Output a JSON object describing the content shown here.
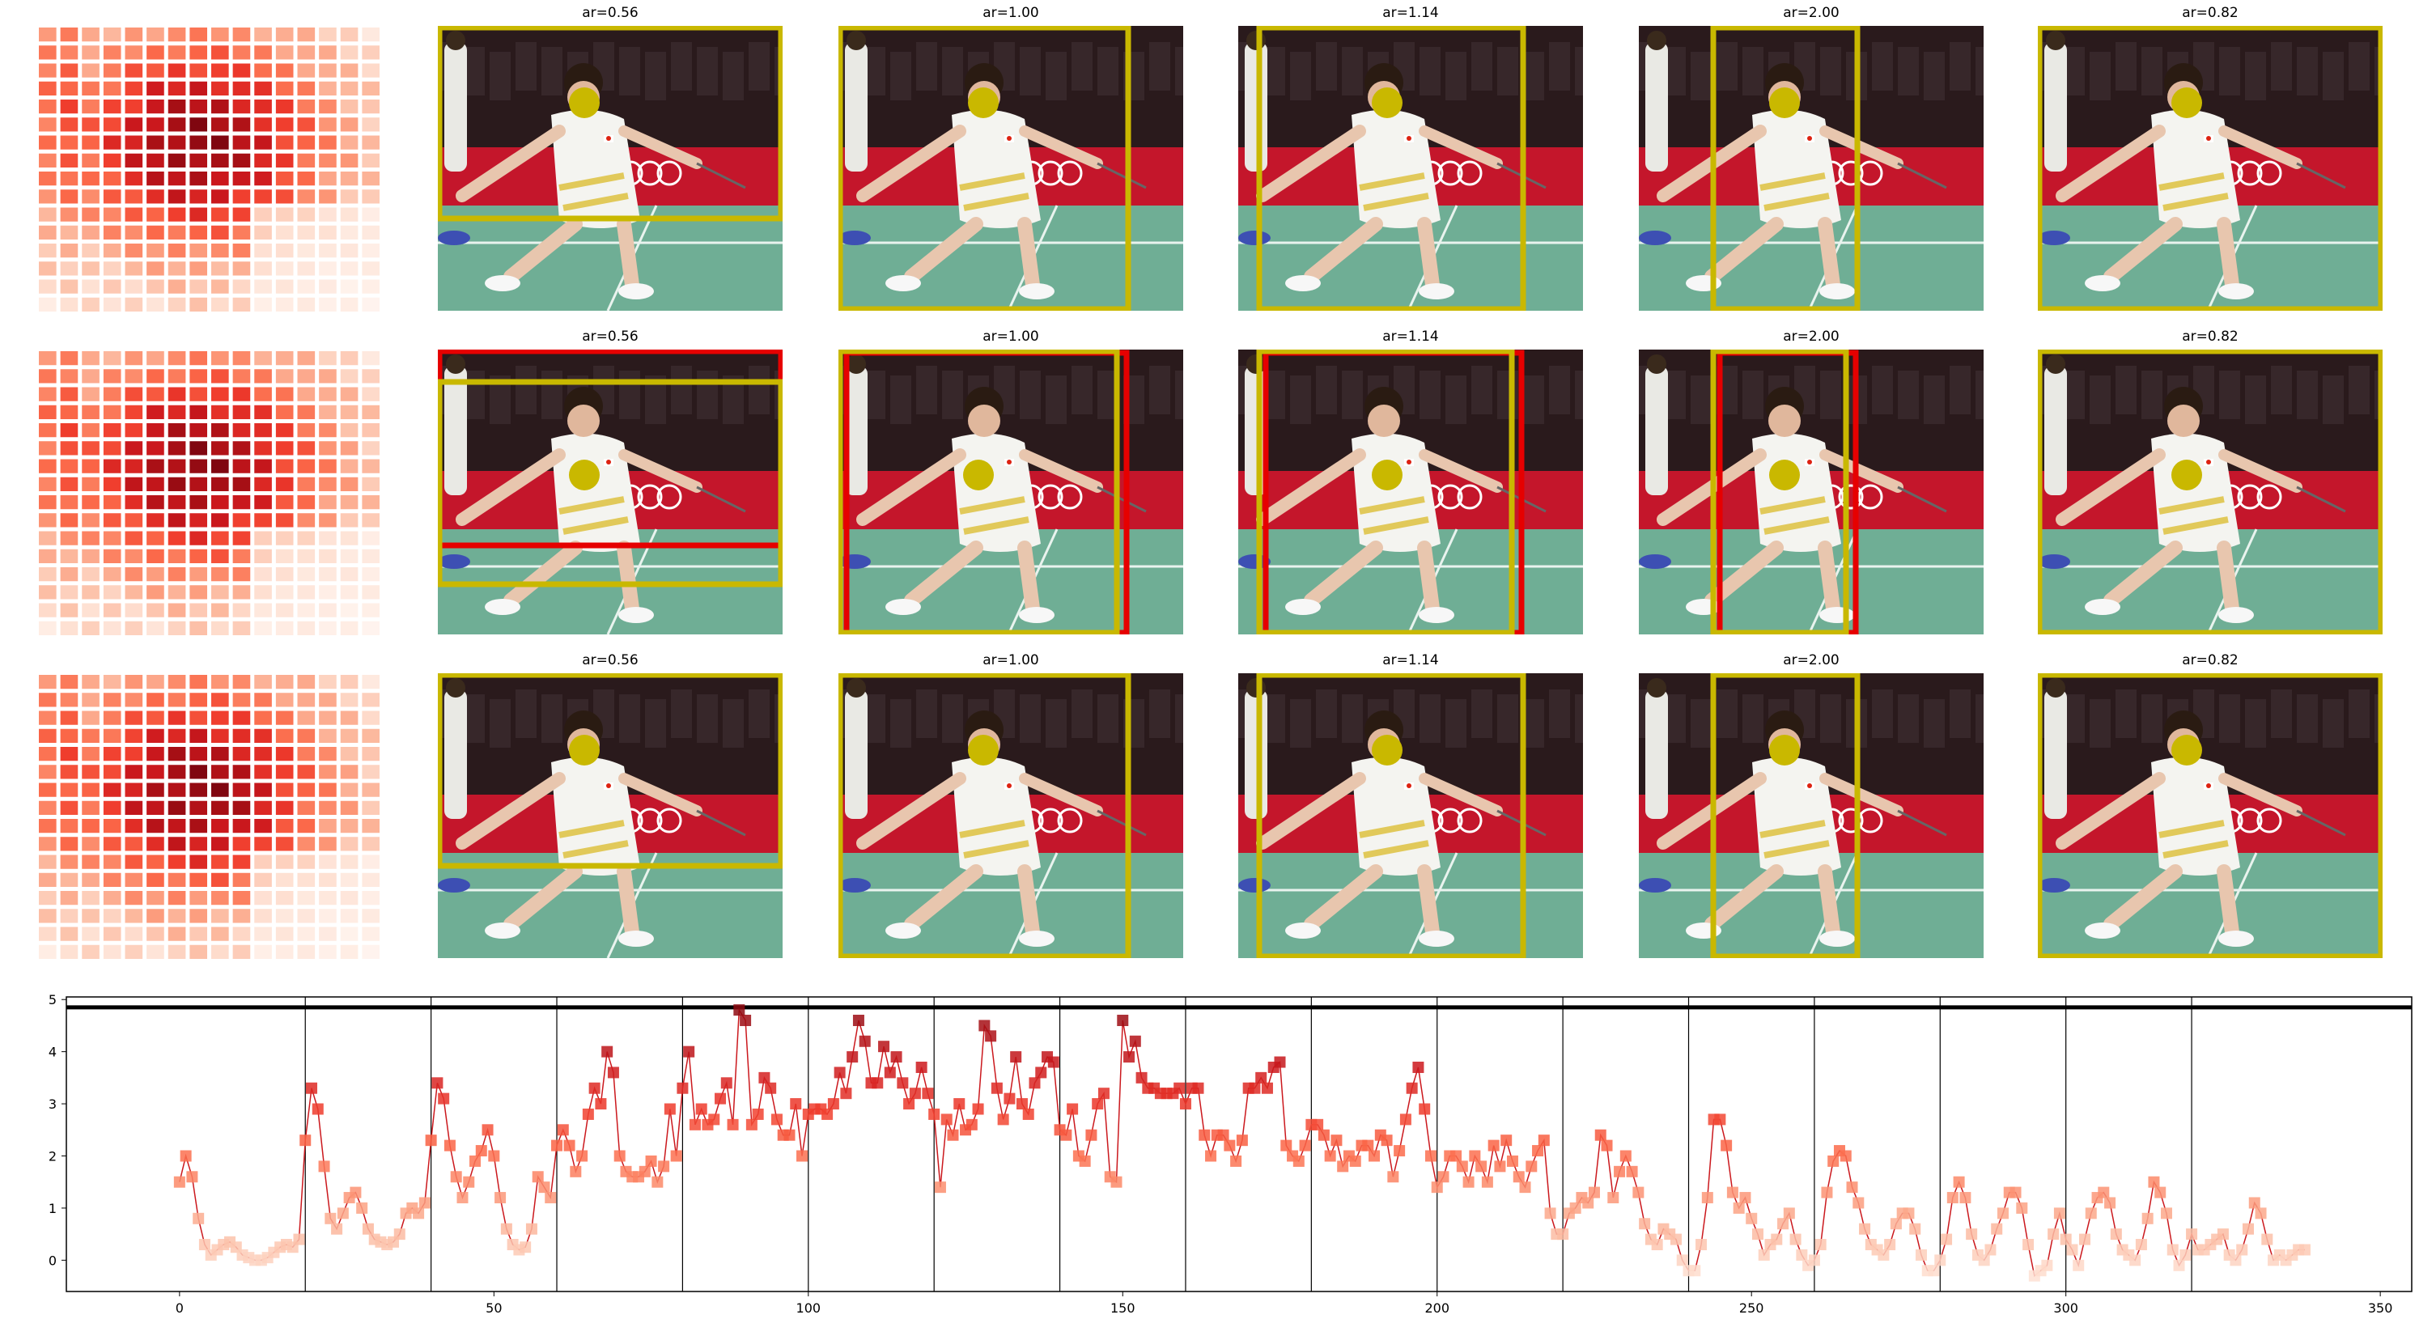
{
  "panels": {
    "titles": [
      "ar=0.56",
      "ar=1.00",
      "ar=1.14",
      "ar=2.00",
      "ar=0.82"
    ],
    "rows": 3,
    "scene": "badminton player lunging on court",
    "colors": {
      "crop_box": "#c9b800",
      "alt_box": "#e60000",
      "marker": "#c9b800",
      "banner_red": "#c4162b",
      "court_green": "#6fae95",
      "stands_dark": "#2a1a1c"
    }
  },
  "heatmap": {
    "grid": 16,
    "colormap": "Reds"
  },
  "chart_data": {
    "type": "line",
    "title": "",
    "xlabel": "",
    "ylabel": "",
    "xlim": [
      -18,
      355
    ],
    "ylim": [
      -0.6,
      5.05
    ],
    "xticks": [
      0,
      50,
      100,
      150,
      200,
      250,
      300,
      350
    ],
    "yticks": [
      0,
      1,
      2,
      3,
      4,
      5
    ],
    "vlines": [
      20,
      40,
      60,
      80,
      100,
      120,
      140,
      160,
      180,
      200,
      220,
      240,
      260,
      280,
      300,
      320
    ],
    "hline": 4.85,
    "marker": "square",
    "line_color": "#cb181d",
    "colormap": "Reds",
    "series": [
      {
        "name": "",
        "x": [
          0,
          1,
          2,
          3,
          4,
          5,
          6,
          7,
          8,
          9,
          10,
          11,
          12,
          13,
          14,
          15,
          16,
          17,
          18,
          19,
          20,
          21,
          22,
          23,
          24,
          25,
          26,
          27,
          28,
          29,
          30,
          31,
          32,
          33,
          34,
          35,
          36,
          37,
          38,
          39,
          40,
          41,
          42,
          43,
          44,
          45,
          46,
          47,
          48,
          49,
          50,
          51,
          52,
          53,
          54,
          55,
          56,
          57,
          58,
          59,
          60,
          61,
          62,
          63,
          64,
          65,
          66,
          67,
          68,
          69,
          70,
          71,
          72,
          73,
          74,
          75,
          76,
          77,
          78,
          79,
          80,
          81,
          82,
          83,
          84,
          85,
          86,
          87,
          88,
          89,
          90,
          91,
          92,
          93,
          94,
          95,
          96,
          97,
          98,
          99,
          100,
          101,
          102,
          103,
          104,
          105,
          106,
          107,
          108,
          109,
          110,
          111,
          112,
          113,
          114,
          115,
          116,
          117,
          118,
          119,
          120,
          121,
          122,
          123,
          124,
          125,
          126,
          127,
          128,
          129,
          130,
          131,
          132,
          133,
          134,
          135,
          136,
          137,
          138,
          139,
          140,
          141,
          142,
          143,
          144,
          145,
          146,
          147,
          148,
          149,
          150,
          151,
          152,
          153,
          154,
          155,
          156,
          157,
          158,
          159,
          160,
          161,
          162,
          163,
          164,
          165,
          166,
          167,
          168,
          169,
          170,
          171,
          172,
          173,
          174,
          175,
          176,
          177,
          178,
          179,
          180,
          181,
          182,
          183,
          184,
          185,
          186,
          187,
          188,
          189,
          190,
          191,
          192,
          193,
          194,
          195,
          196,
          197,
          198,
          199,
          200,
          201,
          202,
          203,
          204,
          205,
          206,
          207,
          208,
          209,
          210,
          211,
          212,
          213,
          214,
          215,
          216,
          217,
          218,
          219,
          220,
          221,
          222,
          223,
          224,
          225,
          226,
          227,
          228,
          229,
          230,
          231,
          232,
          233,
          234,
          235,
          236,
          237,
          238,
          239,
          240,
          241,
          242,
          243,
          244,
          245,
          246,
          247,
          248,
          249,
          250,
          251,
          252,
          253,
          254,
          255,
          256,
          257,
          258,
          259,
          260,
          261,
          262,
          263,
          264,
          265,
          266,
          267,
          268,
          269,
          270,
          271,
          272,
          273,
          274,
          275,
          276,
          277,
          278,
          279,
          280,
          281,
          282,
          283,
          284,
          285,
          286,
          287,
          288,
          289,
          290,
          291,
          292,
          293,
          294,
          295,
          296,
          297,
          298,
          299,
          300,
          301,
          302,
          303,
          304,
          305,
          306,
          307,
          308,
          309,
          310,
          311,
          312,
          313,
          314,
          315,
          316,
          317,
          318,
          319,
          320,
          321,
          322,
          323,
          324,
          325,
          326,
          327,
          328,
          329,
          330,
          331,
          332,
          333,
          334,
          335,
          336,
          337,
          338
        ],
        "y": [
          1.5,
          2.0,
          1.6,
          0.8,
          0.3,
          0.1,
          0.2,
          0.3,
          0.35,
          0.25,
          0.1,
          0.05,
          0.0,
          0.0,
          0.05,
          0.15,
          0.25,
          0.3,
          0.25,
          0.4,
          2.3,
          3.3,
          2.9,
          1.8,
          0.8,
          0.6,
          0.9,
          1.2,
          1.3,
          1.0,
          0.6,
          0.4,
          0.35,
          0.3,
          0.35,
          0.5,
          0.9,
          1.0,
          0.9,
          1.1,
          2.3,
          3.4,
          3.1,
          2.2,
          1.6,
          1.2,
          1.5,
          1.9,
          2.1,
          2.5,
          2.0,
          1.2,
          0.6,
          0.3,
          0.2,
          0.25,
          0.6,
          1.6,
          1.4,
          1.2,
          2.2,
          2.5,
          2.2,
          1.7,
          2.0,
          2.8,
          3.3,
          3.0,
          4.0,
          3.6,
          2.0,
          1.7,
          1.6,
          1.6,
          1.7,
          1.9,
          1.5,
          1.8,
          2.9,
          2.0,
          3.3,
          4.0,
          2.6,
          2.9,
          2.6,
          2.7,
          3.1,
          3.4,
          2.6,
          4.8,
          4.6,
          2.6,
          2.8,
          3.5,
          3.3,
          2.7,
          2.4,
          2.4,
          3.0,
          2.0,
          2.8,
          2.9,
          2.9,
          2.8,
          3.0,
          3.6,
          3.2,
          3.9,
          4.6,
          4.2,
          3.4,
          3.4,
          4.1,
          3.6,
          3.9,
          3.4,
          3.0,
          3.2,
          3.7,
          3.2,
          2.8,
          1.4,
          2.7,
          2.4,
          3.0,
          2.5,
          2.6,
          2.9,
          4.5,
          4.3,
          3.3,
          2.7,
          3.1,
          3.9,
          3.0,
          2.8,
          3.4,
          3.6,
          3.9,
          3.8,
          2.5,
          2.4,
          2.9,
          2.0,
          1.9,
          2.4,
          3.0,
          3.2,
          1.6,
          1.5,
          4.6,
          3.9,
          4.2,
          3.5,
          3.3,
          3.3,
          3.2,
          3.2,
          3.2,
          3.3,
          3.0,
          3.3,
          3.3,
          2.4,
          2.0,
          2.4,
          2.4,
          2.2,
          1.9,
          2.3,
          3.3,
          3.3,
          3.5,
          3.3,
          3.7,
          3.8,
          2.2,
          2.0,
          1.9,
          2.2,
          2.6,
          2.6,
          2.4,
          2.0,
          2.3,
          1.8,
          2.0,
          1.9,
          2.2,
          2.2,
          2.0,
          2.4,
          2.3,
          1.6,
          2.1,
          2.7,
          3.3,
          3.7,
          2.9,
          2.0,
          1.4,
          1.6,
          2.0,
          2.0,
          1.8,
          1.5,
          2.0,
          1.8,
          1.5,
          2.2,
          1.8,
          2.3,
          1.9,
          1.6,
          1.4,
          1.8,
          2.1,
          2.3,
          0.9,
          0.5,
          0.5,
          0.9,
          1.0,
          1.2,
          1.1,
          1.3,
          2.4,
          2.2,
          1.2,
          1.7,
          2.0,
          1.7,
          1.3,
          0.7,
          0.4,
          0.3,
          0.6,
          0.5,
          0.4,
          0.0,
          -0.2,
          -0.2,
          0.3,
          1.2,
          2.7,
          2.7,
          2.2,
          1.3,
          1.0,
          1.2,
          0.8,
          0.5,
          0.1,
          0.3,
          0.4,
          0.7,
          0.9,
          0.4,
          0.1,
          -0.1,
          0.0,
          0.3,
          1.3,
          1.9,
          2.1,
          2.0,
          1.4,
          1.1,
          0.6,
          0.3,
          0.2,
          0.1,
          0.3,
          0.7,
          0.9,
          0.9,
          0.6,
          0.1,
          -0.2,
          -0.2,
          0.0,
          0.4,
          1.2,
          1.5,
          1.2,
          0.5,
          0.1,
          0.0,
          0.2,
          0.6,
          0.9,
          1.3,
          1.3,
          1.0,
          0.3,
          -0.3,
          -0.2,
          -0.1,
          0.5,
          0.9,
          0.4,
          0.2,
          -0.1,
          0.4,
          0.9,
          1.2,
          1.3,
          1.1,
          0.5,
          0.2,
          0.1,
          0.0,
          0.3,
          0.8,
          1.5,
          1.3,
          0.9,
          0.2,
          -0.1,
          0.1,
          0.5,
          0.2,
          0.2,
          0.3,
          0.4,
          0.5,
          0.1,
          0.0,
          0.2,
          0.6,
          1.1,
          0.9,
          0.4,
          0.0,
          0.1,
          0.0,
          0.1,
          0.2,
          0.2
        ]
      }
    ]
  }
}
